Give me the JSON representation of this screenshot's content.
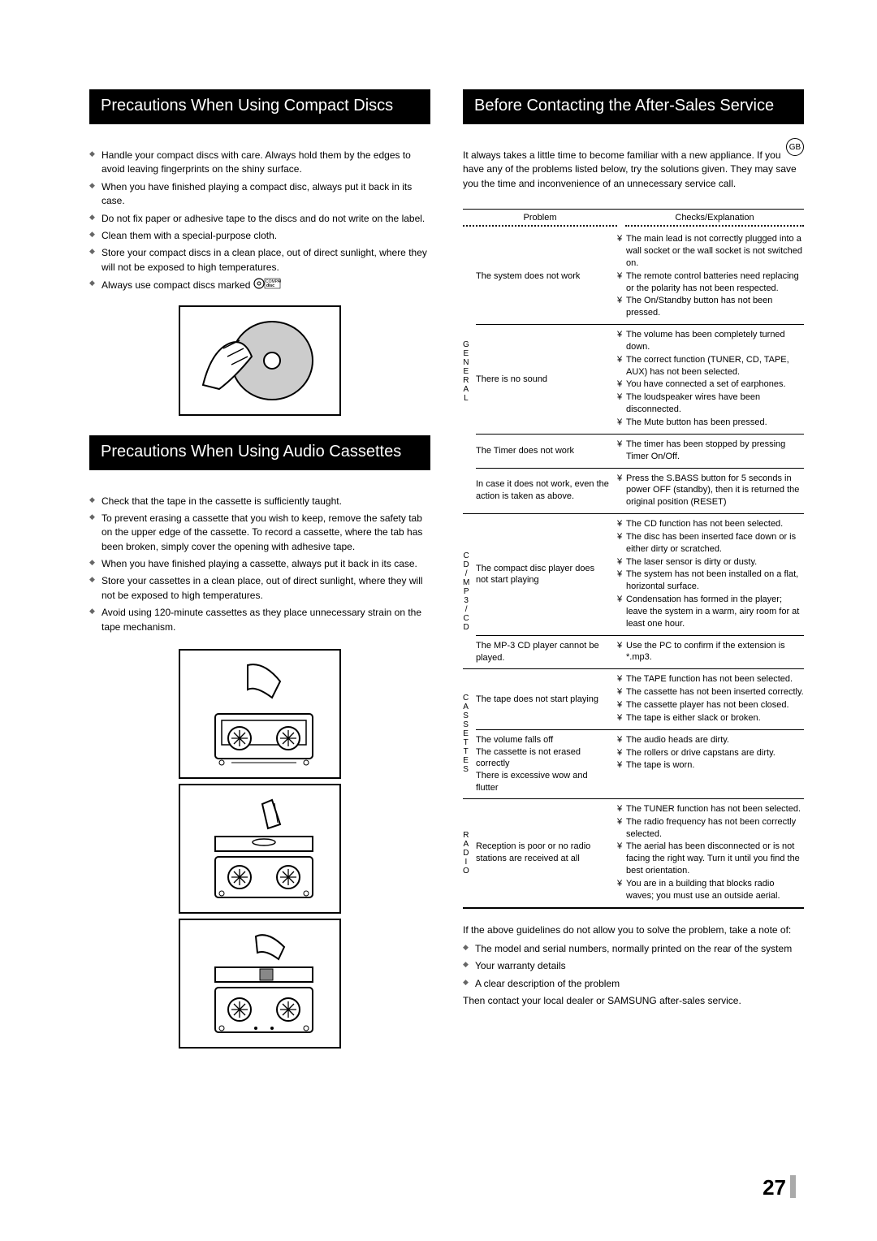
{
  "lang_badge": "GB",
  "page_number": "27",
  "left": {
    "heading1": "Precautions When Using Compact Discs",
    "list1": [
      "Handle your compact discs with care. Always hold them by the edges to avoid leaving fingerprints on the shiny surface.",
      "When you have finished playing a compact disc, always put it back in its case.",
      "Do not fix paper or adhesive tape to the discs and do not write on the label.",
      "Clean them with a special-purpose cloth.",
      "Store your compact discs in a clean place, out of direct sunlight, where they will not be exposed to high temperatures.",
      "Always use compact discs marked"
    ],
    "heading2": "Precautions When Using Audio Cassettes",
    "list2": [
      "Check that the tape in the cassette is sufficiently taught.",
      "To prevent erasing a cassette that you wish to keep, remove the safety tab on the upper edge of the cassette. To record a cassette, where the tab has been broken, simply cover the opening with adhesive tape.",
      "When you have finished playing a cassette, always put it back in its case.",
      "Store your cassettes in a clean place, out of direct sunlight, where they will not be exposed to high temperatures.",
      "Avoid using 120-minute cassettes as they place unnecessary strain on the tape mechanism."
    ]
  },
  "right": {
    "heading": "Before Contacting the After-Sales Service",
    "intro": "It always takes a little time to become familiar with a new appliance. If you have any of the problems listed below, try the solutions given. They may save you the time and inconvenience of an unnecessary service call.",
    "col_problem": "Problem",
    "col_checks": "Checks/Explanation",
    "groups": [
      {
        "label": "GENERAL",
        "rows": [
          {
            "problem": "The system does not work",
            "explanations": [
              "The main lead is not correctly plugged into a wall socket or the wall socket is not switched on.",
              "The remote control batteries need replacing or the polarity has not been respected.",
              "The On/Standby button has not been pressed."
            ]
          },
          {
            "problem": "There is no sound",
            "explanations": [
              "The volume has been completely turned down.",
              "The correct function (TUNER, CD, TAPE, AUX) has not been selected.",
              "You have connected a set of earphones.",
              "The loudspeaker wires have been disconnected.",
              "The Mute button has been pressed."
            ]
          },
          {
            "problem": "The Timer does not work",
            "explanations": [
              "The timer has been stopped by pressing Timer On/Off."
            ]
          },
          {
            "problem": "In case it does not work, even the action is taken as above.",
            "explanations": [
              "Press the S.BASS button for 5 seconds in power OFF (standby), then it is returned the original position (RESET)"
            ]
          }
        ]
      },
      {
        "label": "CD/MP3/CD",
        "rows": [
          {
            "problem": "The compact disc player does not start playing",
            "explanations": [
              "The CD function has not been selected.",
              "The disc has been inserted face down or is either dirty or scratched.",
              "The laser sensor is dirty or dusty.",
              "The system has not been installed on a flat, horizontal surface.",
              "Condensation has formed in the player; leave the system in a warm, airy room for at least one hour."
            ]
          },
          {
            "problem": "The MP-3 CD player cannot be played.",
            "explanations": [
              "Use the PC to confirm if the extension is *.mp3."
            ]
          }
        ]
      },
      {
        "label": "CASSETTES",
        "rows": [
          {
            "problem": "The tape does not start playing",
            "explanations": [
              "The TAPE function has not been selected.",
              "The cassette has not been inserted correctly.",
              "The cassette player has not been closed.",
              "The tape is either slack or broken."
            ]
          },
          {
            "problem": "The volume falls off\nThe cassette is not erased correctly\nThere is excessive wow and flutter",
            "explanations": [
              "The audio heads are dirty.",
              "The rollers or drive capstans are dirty.",
              "The tape is worn."
            ]
          }
        ]
      },
      {
        "label": "RADIO",
        "rows": [
          {
            "problem": "Reception is poor or no radio stations are received at all",
            "explanations": [
              "The TUNER function has not been selected.",
              "The radio frequency has not been correctly selected.",
              "The aerial has been disconnected or is not facing the right way. Turn it until you find the best orientation.",
              "You are in a building that blocks radio waves; you must use an outside aerial."
            ]
          }
        ]
      }
    ],
    "after_intro": "If the above guidelines do not allow you to solve the problem, take a note of:",
    "after_list": [
      "The model and serial numbers, normally printed on the rear of the system",
      "Your warranty details",
      "A clear description of the problem"
    ],
    "after_out": "Then contact your local dealer or SAMSUNG after-sales service."
  }
}
